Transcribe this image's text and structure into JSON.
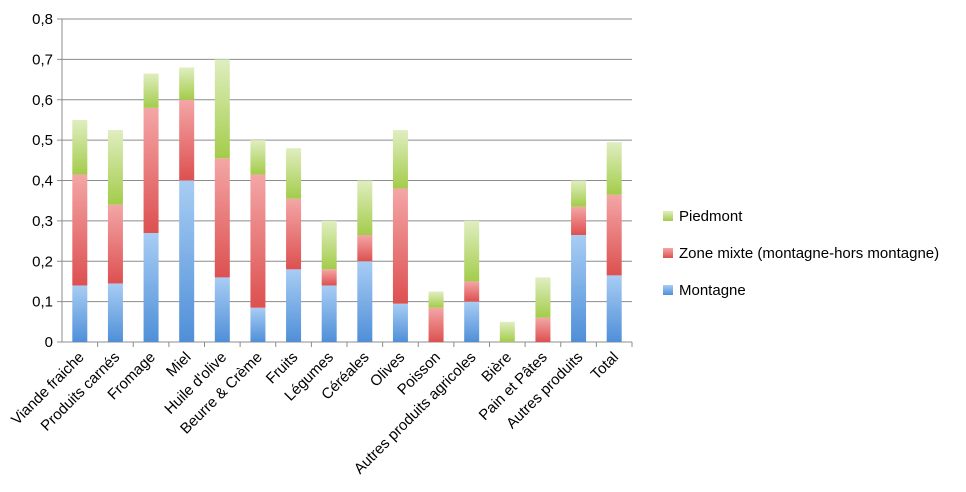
{
  "chart_data": {
    "type": "bar",
    "stacked": true,
    "title": "",
    "xlabel": "",
    "ylabel": "",
    "ylim": [
      0,
      0.8
    ],
    "yticks": [
      "0",
      "0,1",
      "0,2",
      "0,3",
      "0,4",
      "0,5",
      "0,6",
      "0,7",
      "0,8"
    ],
    "grid": true,
    "legend_position": "right",
    "categories": [
      "Viande fraiche",
      "Produits carnés",
      "Fromage",
      "Miel",
      "Huile d'olive",
      "Beurre & Crème",
      "Fruits",
      "Légumes",
      "Céréales",
      "Olives",
      "Poisson",
      "Autres produits agricoles",
      "Bière",
      "Pain et Pâtes",
      "Autres produits",
      "Total"
    ],
    "series": [
      {
        "name": "Montagne",
        "color": "#5b9bd5",
        "values": [
          0.14,
          0.145,
          0.27,
          0.4,
          0.16,
          0.085,
          0.18,
          0.14,
          0.2,
          0.095,
          0.0,
          0.1,
          0.0,
          0.0,
          0.265,
          0.165
        ]
      },
      {
        "name": "Zone mixte (montagne-hors montagne)",
        "color": "#e05c5c",
        "values": [
          0.275,
          0.195,
          0.31,
          0.2,
          0.295,
          0.33,
          0.175,
          0.04,
          0.065,
          0.285,
          0.085,
          0.05,
          0.0,
          0.06,
          0.07,
          0.2
        ]
      },
      {
        "name": "Piedmont",
        "color": "#a9cf54",
        "values": [
          0.135,
          0.185,
          0.085,
          0.08,
          0.245,
          0.085,
          0.125,
          0.12,
          0.135,
          0.145,
          0.04,
          0.15,
          0.05,
          0.1,
          0.065,
          0.13
        ]
      }
    ]
  }
}
